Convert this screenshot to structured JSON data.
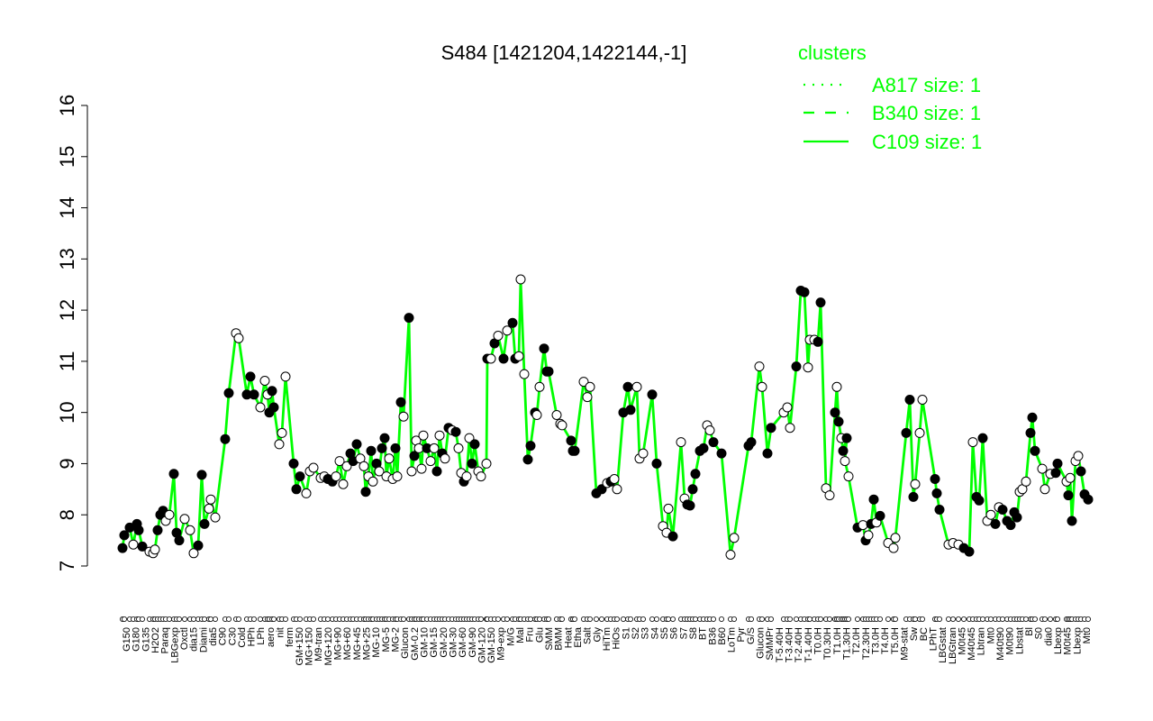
{
  "chart_data": {
    "type": "line",
    "title": "S484 [1421204,1422144,-1]",
    "xlabel": "",
    "ylabel": "",
    "ylim": [
      7,
      16
    ],
    "yticks": [
      7,
      8,
      9,
      10,
      11,
      12,
      13,
      14,
      15,
      16
    ],
    "grid": false,
    "line_color": "#00ff00",
    "legend": {
      "position": "top-right",
      "title": "clusters",
      "color": "#00ff00",
      "entries": [
        {
          "label": "A817 size: 1",
          "style": "dotted"
        },
        {
          "label": "B340 size: 1",
          "style": "dashed"
        },
        {
          "label": "C109 size: 1",
          "style": "solid"
        }
      ]
    },
    "x_labels": [
      "G150",
      "G180",
      "G135",
      "H2O2",
      "Paraq",
      "LBGexp",
      "Oxctl",
      "dia15",
      "Diami",
      "dia5",
      "C90",
      "C30",
      "Cold",
      "HPh",
      "LPh",
      "aero",
      "nit",
      "ferm",
      "GM+150",
      "MG+150",
      "M9-tran",
      "MG+120",
      "MG+90",
      "MG+60",
      "MG+45",
      "MG+25",
      "MG-10",
      "MG-5",
      "MG-2",
      "Glucon",
      "GM-0.2",
      "GM-10",
      "GM-15",
      "GM-20",
      "GM-30",
      "GM-60",
      "GM-90",
      "GM-120",
      "GM-150",
      "M9-exp",
      "M/G",
      "Mal",
      "Fru",
      "Glu",
      "SMM",
      "BMM",
      "Heat",
      "Etha",
      "Salt",
      "Gly",
      "HiTm",
      "HiOs",
      "S1",
      "S2",
      "S3",
      "S4",
      "S5",
      "S6",
      "S7",
      "S8",
      "BT",
      "B36",
      "B60",
      "LoTm",
      "Pyr",
      "G/S",
      "Glucon",
      "SMMPr",
      "T-5.40H",
      "T-3.40H",
      "T-2.40H",
      "T-1.40H",
      "T0.0H",
      "T0.30H",
      "T1.0H",
      "T1.30H",
      "T2.0H",
      "T2.30H",
      "T3.0H",
      "T4.0H",
      "T5.0H",
      "M9-stat",
      "Sw",
      "BC",
      "LPhT",
      "LBGstat",
      "LBGtran",
      "M0t45",
      "M40t45",
      "Lbtran",
      "Mt0",
      "M40t90",
      "M0t90",
      "Lbstat",
      "Bl",
      "S0",
      "dia0",
      "Lbexp",
      "M0t45",
      "Lbexp",
      "Mt0"
    ],
    "points": [
      {
        "x": 136,
        "y": 7.35,
        "f": 1
      },
      {
        "x": 138,
        "y": 7.6,
        "f": 1
      },
      {
        "x": 144,
        "y": 7.75,
        "f": 1
      },
      {
        "x": 148,
        "y": 7.42,
        "f": 0
      },
      {
        "x": 152,
        "y": 7.82,
        "f": 1
      },
      {
        "x": 154,
        "y": 7.7,
        "f": 1
      },
      {
        "x": 158,
        "y": 7.38,
        "f": 1
      },
      {
        "x": 166,
        "y": 7.28,
        "f": 0
      },
      {
        "x": 170,
        "y": 7.25,
        "f": 0
      },
      {
        "x": 172,
        "y": 7.32,
        "f": 0
      },
      {
        "x": 175,
        "y": 7.7,
        "f": 1
      },
      {
        "x": 178,
        "y": 8.0,
        "f": 1
      },
      {
        "x": 181,
        "y": 8.08,
        "f": 1
      },
      {
        "x": 184,
        "y": 7.88,
        "f": 0
      },
      {
        "x": 188,
        "y": 8.0,
        "f": 0
      },
      {
        "x": 193,
        "y": 8.8,
        "f": 1
      },
      {
        "x": 196,
        "y": 7.65,
        "f": 1
      },
      {
        "x": 199,
        "y": 7.5,
        "f": 1
      },
      {
        "x": 205,
        "y": 7.92,
        "f": 0
      },
      {
        "x": 211,
        "y": 7.7,
        "f": 0
      },
      {
        "x": 215,
        "y": 7.25,
        "f": 0
      },
      {
        "x": 220,
        "y": 7.4,
        "f": 1
      },
      {
        "x": 224,
        "y": 8.78,
        "f": 1
      },
      {
        "x": 227,
        "y": 7.82,
        "f": 1
      },
      {
        "x": 232,
        "y": 8.12,
        "f": 0
      },
      {
        "x": 234,
        "y": 8.3,
        "f": 0
      },
      {
        "x": 239,
        "y": 7.95,
        "f": 0
      },
      {
        "x": 250,
        "y": 9.48,
        "f": 1
      },
      {
        "x": 254,
        "y": 10.38,
        "f": 1
      },
      {
        "x": 262,
        "y": 11.55,
        "f": 0
      },
      {
        "x": 265,
        "y": 11.45,
        "f": 0
      },
      {
        "x": 274,
        "y": 10.35,
        "f": 1
      },
      {
        "x": 278,
        "y": 10.7,
        "f": 1
      },
      {
        "x": 282,
        "y": 10.35,
        "f": 1
      },
      {
        "x": 289,
        "y": 10.1,
        "f": 0
      },
      {
        "x": 294,
        "y": 10.62,
        "f": 0
      },
      {
        "x": 297,
        "y": 10.35,
        "f": 0
      },
      {
        "x": 299,
        "y": 10.0,
        "f": 1
      },
      {
        "x": 302,
        "y": 10.42,
        "f": 1
      },
      {
        "x": 304,
        "y": 10.1,
        "f": 1
      },
      {
        "x": 310,
        "y": 9.38,
        "f": 0
      },
      {
        "x": 313,
        "y": 9.6,
        "f": 0
      },
      {
        "x": 317,
        "y": 10.7,
        "f": 0
      },
      {
        "x": 326,
        "y": 9.0,
        "f": 1
      },
      {
        "x": 329,
        "y": 8.5,
        "f": 1
      },
      {
        "x": 333,
        "y": 8.75,
        "f": 1
      },
      {
        "x": 340,
        "y": 8.42,
        "f": 0
      },
      {
        "x": 344,
        "y": 8.85,
        "f": 0
      },
      {
        "x": 348,
        "y": 8.92,
        "f": 0
      },
      {
        "x": 356,
        "y": 8.72,
        "f": 0
      },
      {
        "x": 360,
        "y": 8.75,
        "f": 0
      },
      {
        "x": 364,
        "y": 8.7,
        "f": 1
      },
      {
        "x": 369,
        "y": 8.65,
        "f": 1
      },
      {
        "x": 373,
        "y": 8.75,
        "f": 0
      },
      {
        "x": 377,
        "y": 9.05,
        "f": 0
      },
      {
        "x": 381,
        "y": 8.6,
        "f": 0
      },
      {
        "x": 385,
        "y": 8.95,
        "f": 0
      },
      {
        "x": 389,
        "y": 9.2,
        "f": 1
      },
      {
        "x": 392,
        "y": 9.05,
        "f": 1
      },
      {
        "x": 396,
        "y": 9.38,
        "f": 1
      },
      {
        "x": 400,
        "y": 9.1,
        "f": 0
      },
      {
        "x": 404,
        "y": 8.95,
        "f": 0
      },
      {
        "x": 406,
        "y": 8.45,
        "f": 1
      },
      {
        "x": 409,
        "y": 8.75,
        "f": 0
      },
      {
        "x": 412,
        "y": 9.25,
        "f": 1
      },
      {
        "x": 414,
        "y": 8.65,
        "f": 0
      },
      {
        "x": 418,
        "y": 9.0,
        "f": 1
      },
      {
        "x": 421,
        "y": 8.85,
        "f": 0
      },
      {
        "x": 424,
        "y": 9.3,
        "f": 1
      },
      {
        "x": 427,
        "y": 9.5,
        "f": 1
      },
      {
        "x": 429,
        "y": 8.75,
        "f": 0
      },
      {
        "x": 432,
        "y": 9.1,
        "f": 0
      },
      {
        "x": 436,
        "y": 8.7,
        "f": 0
      },
      {
        "x": 439,
        "y": 9.3,
        "f": 1
      },
      {
        "x": 441,
        "y": 8.75,
        "f": 0
      },
      {
        "x": 445,
        "y": 10.2,
        "f": 1
      },
      {
        "x": 448,
        "y": 9.92,
        "f": 0
      },
      {
        "x": 454,
        "y": 11.85,
        "f": 1
      },
      {
        "x": 457,
        "y": 8.85,
        "f": 0
      },
      {
        "x": 460,
        "y": 9.15,
        "f": 1
      },
      {
        "x": 462,
        "y": 9.45,
        "f": 0
      },
      {
        "x": 465,
        "y": 9.3,
        "f": 0
      },
      {
        "x": 468,
        "y": 8.9,
        "f": 0
      },
      {
        "x": 470,
        "y": 9.55,
        "f": 0
      },
      {
        "x": 474,
        "y": 9.3,
        "f": 1
      },
      {
        "x": 478,
        "y": 9.05,
        "f": 0
      },
      {
        "x": 482,
        "y": 9.3,
        "f": 0
      },
      {
        "x": 485,
        "y": 8.85,
        "f": 1
      },
      {
        "x": 488,
        "y": 9.55,
        "f": 0
      },
      {
        "x": 491,
        "y": 9.2,
        "f": 1
      },
      {
        "x": 494,
        "y": 9.1,
        "f": 0
      },
      {
        "x": 498,
        "y": 9.7,
        "f": 1
      },
      {
        "x": 502,
        "y": 9.65,
        "f": 0
      },
      {
        "x": 506,
        "y": 9.62,
        "f": 1
      },
      {
        "x": 509,
        "y": 9.3,
        "f": 0
      },
      {
        "x": 512,
        "y": 8.82,
        "f": 0
      },
      {
        "x": 515,
        "y": 8.65,
        "f": 1
      },
      {
        "x": 518,
        "y": 8.75,
        "f": 0
      },
      {
        "x": 521,
        "y": 9.5,
        "f": 0
      },
      {
        "x": 524,
        "y": 9.0,
        "f": 1
      },
      {
        "x": 527,
        "y": 9.38,
        "f": 1
      },
      {
        "x": 531,
        "y": 8.85,
        "f": 0
      },
      {
        "x": 534,
        "y": 8.75,
        "f": 0
      },
      {
        "x": 540,
        "y": 9.0,
        "f": 0
      },
      {
        "x": 541,
        "y": 11.05,
        "f": 1
      },
      {
        "x": 545,
        "y": 11.05,
        "f": 0
      },
      {
        "x": 549,
        "y": 11.35,
        "f": 1
      },
      {
        "x": 553,
        "y": 11.5,
        "f": 0
      },
      {
        "x": 559,
        "y": 11.05,
        "f": 1
      },
      {
        "x": 563,
        "y": 11.6,
        "f": 0
      },
      {
        "x": 569,
        "y": 11.75,
        "f": 1
      },
      {
        "x": 572,
        "y": 11.05,
        "f": 1
      },
      {
        "x": 576,
        "y": 11.1,
        "f": 0
      },
      {
        "x": 578,
        "y": 12.6,
        "f": 0
      },
      {
        "x": 582,
        "y": 10.75,
        "f": 0
      },
      {
        "x": 586,
        "y": 9.08,
        "f": 1
      },
      {
        "x": 589,
        "y": 9.35,
        "f": 1
      },
      {
        "x": 594,
        "y": 10.0,
        "f": 1
      },
      {
        "x": 596,
        "y": 9.95,
        "f": 0
      },
      {
        "x": 599,
        "y": 10.5,
        "f": 0
      },
      {
        "x": 604,
        "y": 11.25,
        "f": 1
      },
      {
        "x": 607,
        "y": 10.8,
        "f": 1
      },
      {
        "x": 609,
        "y": 10.8,
        "f": 1
      },
      {
        "x": 618,
        "y": 9.95,
        "f": 0
      },
      {
        "x": 622,
        "y": 9.78,
        "f": 0
      },
      {
        "x": 624,
        "y": 9.75,
        "f": 0
      },
      {
        "x": 634,
        "y": 9.45,
        "f": 1
      },
      {
        "x": 636,
        "y": 9.25,
        "f": 1
      },
      {
        "x": 638,
        "y": 9.25,
        "f": 1
      },
      {
        "x": 648,
        "y": 10.6,
        "f": 0
      },
      {
        "x": 652,
        "y": 10.3,
        "f": 0
      },
      {
        "x": 655,
        "y": 10.5,
        "f": 0
      },
      {
        "x": 662,
        "y": 8.42,
        "f": 1
      },
      {
        "x": 668,
        "y": 8.5,
        "f": 1
      },
      {
        "x": 674,
        "y": 8.62,
        "f": 0
      },
      {
        "x": 678,
        "y": 8.65,
        "f": 1
      },
      {
        "x": 682,
        "y": 8.7,
        "f": 0
      },
      {
        "x": 685,
        "y": 8.5,
        "f": 0
      },
      {
        "x": 692,
        "y": 10.0,
        "f": 1
      },
      {
        "x": 697,
        "y": 10.5,
        "f": 1
      },
      {
        "x": 700,
        "y": 10.05,
        "f": 1
      },
      {
        "x": 707,
        "y": 10.5,
        "f": 0
      },
      {
        "x": 710,
        "y": 9.1,
        "f": 0
      },
      {
        "x": 714,
        "y": 9.2,
        "f": 0
      },
      {
        "x": 724,
        "y": 10.35,
        "f": 1
      },
      {
        "x": 729,
        "y": 9.0,
        "f": 1
      },
      {
        "x": 736,
        "y": 7.78,
        "f": 0
      },
      {
        "x": 740,
        "y": 7.65,
        "f": 0
      },
      {
        "x": 742,
        "y": 8.12,
        "f": 0
      },
      {
        "x": 747,
        "y": 7.58,
        "f": 1
      },
      {
        "x": 756,
        "y": 9.42,
        "f": 0
      },
      {
        "x": 760,
        "y": 8.32,
        "f": 0
      },
      {
        "x": 763,
        "y": 8.2,
        "f": 1
      },
      {
        "x": 766,
        "y": 8.18,
        "f": 1
      },
      {
        "x": 769,
        "y": 8.5,
        "f": 1
      },
      {
        "x": 772,
        "y": 8.8,
        "f": 1
      },
      {
        "x": 777,
        "y": 9.25,
        "f": 1
      },
      {
        "x": 781,
        "y": 9.3,
        "f": 1
      },
      {
        "x": 785,
        "y": 9.75,
        "f": 0
      },
      {
        "x": 788,
        "y": 9.65,
        "f": 0
      },
      {
        "x": 792,
        "y": 9.42,
        "f": 1
      },
      {
        "x": 801,
        "y": 9.2,
        "f": 1
      },
      {
        "x": 811,
        "y": 7.22,
        "f": 0
      },
      {
        "x": 815,
        "y": 7.55,
        "f": 0
      },
      {
        "x": 831,
        "y": 9.35,
        "f": 1
      },
      {
        "x": 834,
        "y": 9.42,
        "f": 1
      },
      {
        "x": 843,
        "y": 10.9,
        "f": 0
      },
      {
        "x": 846,
        "y": 10.5,
        "f": 0
      },
      {
        "x": 852,
        "y": 9.2,
        "f": 1
      },
      {
        "x": 856,
        "y": 9.7,
        "f": 1
      },
      {
        "x": 870,
        "y": 10.0,
        "f": 0
      },
      {
        "x": 874,
        "y": 10.1,
        "f": 0
      },
      {
        "x": 877,
        "y": 9.7,
        "f": 0
      },
      {
        "x": 884,
        "y": 10.9,
        "f": 1
      },
      {
        "x": 889,
        "y": 12.38,
        "f": 1
      },
      {
        "x": 893,
        "y": 12.35,
        "f": 1
      },
      {
        "x": 897,
        "y": 10.88,
        "f": 0
      },
      {
        "x": 899,
        "y": 11.42,
        "f": 0
      },
      {
        "x": 904,
        "y": 11.42,
        "f": 0
      },
      {
        "x": 908,
        "y": 11.38,
        "f": 1
      },
      {
        "x": 911,
        "y": 12.15,
        "f": 1
      },
      {
        "x": 917,
        "y": 8.52,
        "f": 0
      },
      {
        "x": 921,
        "y": 8.38,
        "f": 0
      },
      {
        "x": 927,
        "y": 10.0,
        "f": 1
      },
      {
        "x": 929,
        "y": 10.5,
        "f": 0
      },
      {
        "x": 931,
        "y": 9.82,
        "f": 1
      },
      {
        "x": 934,
        "y": 9.5,
        "f": 0
      },
      {
        "x": 936,
        "y": 9.25,
        "f": 1
      },
      {
        "x": 940,
        "y": 9.5,
        "f": 1
      },
      {
        "x": 938,
        "y": 9.05,
        "f": 0
      },
      {
        "x": 942,
        "y": 8.75,
        "f": 0
      },
      {
        "x": 952,
        "y": 7.75,
        "f": 1
      },
      {
        "x": 958,
        "y": 7.8,
        "f": 0
      },
      {
        "x": 961,
        "y": 7.5,
        "f": 1
      },
      {
        "x": 964,
        "y": 7.6,
        "f": 0
      },
      {
        "x": 967,
        "y": 7.82,
        "f": 1
      },
      {
        "x": 970,
        "y": 8.3,
        "f": 1
      },
      {
        "x": 973,
        "y": 7.85,
        "f": 0
      },
      {
        "x": 977,
        "y": 7.98,
        "f": 1
      },
      {
        "x": 986,
        "y": 7.45,
        "f": 0
      },
      {
        "x": 992,
        "y": 7.35,
        "f": 0
      },
      {
        "x": 994,
        "y": 7.55,
        "f": 0
      },
      {
        "x": 1006,
        "y": 9.6,
        "f": 1
      },
      {
        "x": 1010,
        "y": 10.25,
        "f": 1
      },
      {
        "x": 1014,
        "y": 8.35,
        "f": 1
      },
      {
        "x": 1016,
        "y": 8.6,
        "f": 0
      },
      {
        "x": 1021,
        "y": 9.6,
        "f": 0
      },
      {
        "x": 1024,
        "y": 10.25,
        "f": 0
      },
      {
        "x": 1038,
        "y": 8.7,
        "f": 1
      },
      {
        "x": 1040,
        "y": 8.42,
        "f": 1
      },
      {
        "x": 1043,
        "y": 8.1,
        "f": 1
      },
      {
        "x": 1053,
        "y": 7.42,
        "f": 0
      },
      {
        "x": 1058,
        "y": 7.45,
        "f": 0
      },
      {
        "x": 1064,
        "y": 7.42,
        "f": 0
      },
      {
        "x": 1070,
        "y": 7.35,
        "f": 1
      },
      {
        "x": 1076,
        "y": 7.28,
        "f": 1
      },
      {
        "x": 1080,
        "y": 9.42,
        "f": 0
      },
      {
        "x": 1084,
        "y": 8.35,
        "f": 1
      },
      {
        "x": 1087,
        "y": 8.28,
        "f": 1
      },
      {
        "x": 1091,
        "y": 9.5,
        "f": 1
      },
      {
        "x": 1096,
        "y": 7.88,
        "f": 0
      },
      {
        "x": 1100,
        "y": 8.0,
        "f": 0
      },
      {
        "x": 1105,
        "y": 7.82,
        "f": 1
      },
      {
        "x": 1109,
        "y": 8.15,
        "f": 0
      },
      {
        "x": 1113,
        "y": 8.1,
        "f": 1
      },
      {
        "x": 1118,
        "y": 7.88,
        "f": 1
      },
      {
        "x": 1122,
        "y": 7.8,
        "f": 1
      },
      {
        "x": 1126,
        "y": 8.05,
        "f": 1
      },
      {
        "x": 1129,
        "y": 7.95,
        "f": 1
      },
      {
        "x": 1132,
        "y": 8.45,
        "f": 0
      },
      {
        "x": 1135,
        "y": 8.5,
        "f": 0
      },
      {
        "x": 1139,
        "y": 8.65,
        "f": 0
      },
      {
        "x": 1144,
        "y": 9.6,
        "f": 1
      },
      {
        "x": 1146,
        "y": 9.9,
        "f": 1
      },
      {
        "x": 1149,
        "y": 9.25,
        "f": 1
      },
      {
        "x": 1157,
        "y": 8.9,
        "f": 0
      },
      {
        "x": 1160,
        "y": 8.5,
        "f": 0
      },
      {
        "x": 1166,
        "y": 8.8,
        "f": 0
      },
      {
        "x": 1172,
        "y": 8.82,
        "f": 1
      },
      {
        "x": 1174,
        "y": 9.0,
        "f": 1
      },
      {
        "x": 1184,
        "y": 8.65,
        "f": 0
      },
      {
        "x": 1186,
        "y": 8.38,
        "f": 1
      },
      {
        "x": 1188,
        "y": 8.72,
        "f": 0
      },
      {
        "x": 1190,
        "y": 7.88,
        "f": 1
      },
      {
        "x": 1194,
        "y": 9.05,
        "f": 0
      },
      {
        "x": 1197,
        "y": 9.15,
        "f": 0
      },
      {
        "x": 1200,
        "y": 8.85,
        "f": 1
      },
      {
        "x": 1204,
        "y": 8.4,
        "f": 1
      },
      {
        "x": 1208,
        "y": 8.3,
        "f": 1
      }
    ]
  }
}
